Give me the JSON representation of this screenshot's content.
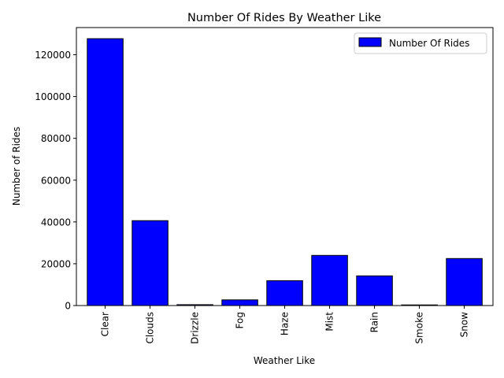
{
  "chart_data": {
    "type": "bar",
    "title": "Number Of Rides By Weather Like",
    "xlabel": "Weather Like",
    "ylabel": "Number of Rides",
    "categories": [
      "Clear",
      "Clouds",
      "Drizzle",
      "Fog",
      "Haze",
      "Mist",
      "Rain",
      "Smoke",
      "Snow"
    ],
    "series": [
      {
        "name": "Number Of Rides",
        "color": "#0000ff",
        "edgecolor": "#000000",
        "values": [
          127700,
          40600,
          400,
          2700,
          11900,
          24000,
          14200,
          300,
          22500
        ]
      }
    ],
    "ylim": [
      0,
      133000
    ],
    "yticks": [
      0,
      20000,
      40000,
      60000,
      80000,
      100000,
      120000
    ],
    "ytick_labels": [
      "0",
      "20000",
      "40000",
      "60000",
      "80000",
      "100000",
      "120000"
    ],
    "legend_position": "top-right",
    "grid": false
  }
}
